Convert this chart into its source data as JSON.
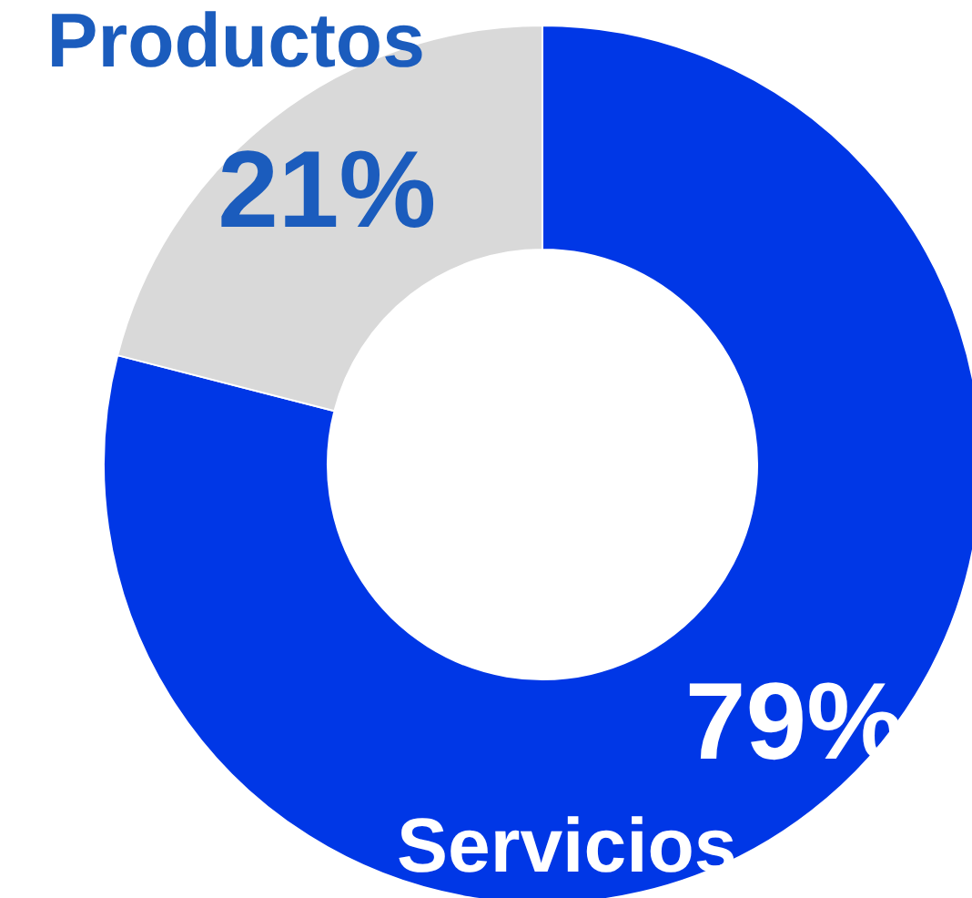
{
  "chart_data": {
    "type": "donut",
    "categories": [
      "Servicios",
      "Productos"
    ],
    "values": [
      79,
      21
    ],
    "value_labels": [
      "79%",
      "21%"
    ],
    "colors": [
      "#0037e6",
      "#d9d9d9"
    ],
    "legend": false
  }
}
